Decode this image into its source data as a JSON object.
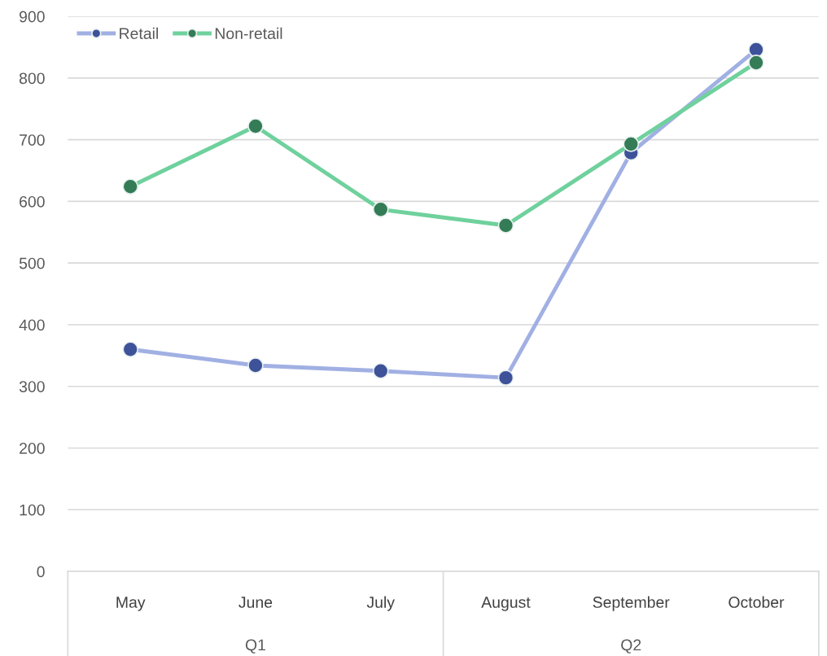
{
  "chart_data": {
    "type": "line",
    "categories": [
      "May",
      "June",
      "July",
      "August",
      "September",
      "October"
    ],
    "series": [
      {
        "name": "Retail",
        "color": "#a1b0e3",
        "values": [
          360,
          334,
          325,
          314,
          679,
          846
        ]
      },
      {
        "name": "Non-retail",
        "color": "#6fd19d",
        "values": [
          624,
          722,
          587,
          561,
          693,
          825
        ]
      }
    ],
    "annotations": [
      "Q1",
      "Q2"
    ],
    "ylim": [
      0,
      900
    ],
    "yticks": [
      0,
      100,
      200,
      300,
      400,
      500,
      600,
      700,
      800,
      900
    ],
    "grid": "y",
    "legend": "top left",
    "marker": "circle",
    "line_style": "solid"
  }
}
